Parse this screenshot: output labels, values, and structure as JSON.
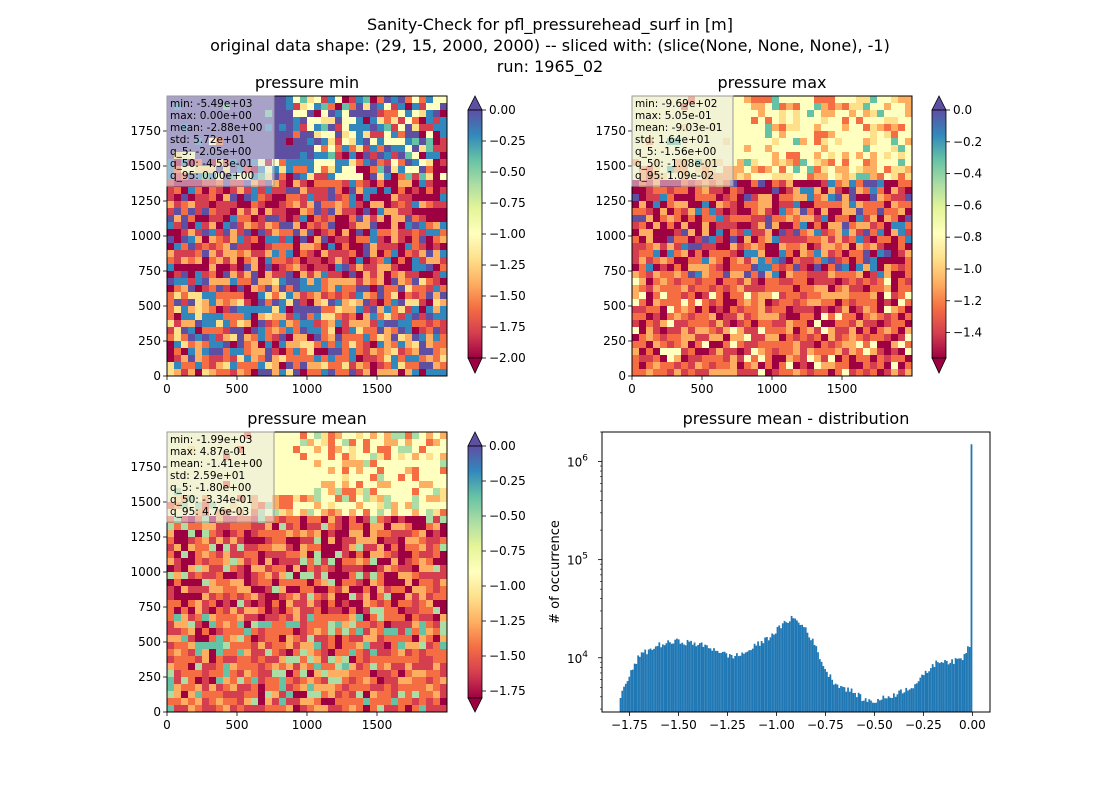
{
  "figure": {
    "suptitle_lines": [
      "Sanity-Check for pfl_pressurehead_surf in [m]",
      "original data shape: (29, 15, 2000, 2000) -- sliced with: (slice(None, None, None), -1)",
      "run: 1965_02"
    ]
  },
  "chart_data": [
    {
      "type": "heatmap",
      "title": "pressure min",
      "xlim": [
        0,
        2000
      ],
      "ylim": [
        0,
        2000
      ],
      "x_ticks": [
        0,
        500,
        1000,
        1500
      ],
      "y_ticks": [
        0,
        250,
        500,
        750,
        1000,
        1250,
        1500,
        1750
      ],
      "colormap": "Spectral",
      "colorbar_range": [
        -2.0,
        0.0
      ],
      "colorbar_ticks": [
        "0.00",
        "−0.25",
        "−0.50",
        "−0.75",
        "−1.00",
        "−1.25",
        "−1.50",
        "−1.75",
        "−2.00"
      ],
      "colorbar_extend": "both",
      "stats": [
        "min: -5.49e+03",
        "max: 0.00e+00",
        "mean: -2.88e+00",
        "std: 5.72e+01",
        "q_5: -2.05e+00",
        "q_50: -4.53e-01",
        "q_95: 0.00e+00"
      ]
    },
    {
      "type": "heatmap",
      "title": "pressure max",
      "xlim": [
        0,
        2000
      ],
      "ylim": [
        0,
        2000
      ],
      "x_ticks": [
        0,
        500,
        1000,
        1500
      ],
      "y_ticks": [
        0,
        250,
        500,
        750,
        1000,
        1250,
        1500,
        1750
      ],
      "colormap": "Spectral",
      "colorbar_range": [
        -1.56,
        0.0
      ],
      "colorbar_ticks": [
        "0.0",
        "−0.2",
        "−0.4",
        "−0.6",
        "−0.8",
        "−1.0",
        "−1.2",
        "−1.4"
      ],
      "colorbar_extend": "both",
      "stats": [
        "min: -9.69e+02",
        "max: 5.05e-01",
        "mean: -9.03e-01",
        "std: 1.64e+01",
        "q_5: -1.56e+00",
        "q_50: -1.08e-01",
        "q_95: 1.09e-02"
      ]
    },
    {
      "type": "heatmap",
      "title": "pressure mean",
      "xlim": [
        0,
        2000
      ],
      "ylim": [
        0,
        2000
      ],
      "x_ticks": [
        0,
        500,
        1000,
        1500
      ],
      "y_ticks": [
        0,
        250,
        500,
        750,
        1000,
        1250,
        1500,
        1750
      ],
      "colormap": "Spectral",
      "colorbar_range": [
        -1.8,
        0.0
      ],
      "colorbar_ticks": [
        "0.00",
        "−0.25",
        "−0.50",
        "−0.75",
        "−1.00",
        "−1.25",
        "−1.50",
        "−1.75"
      ],
      "colorbar_extend": "both",
      "stats": [
        "min: -1.99e+03",
        "max: 4.87e-01",
        "mean: -1.41e+00",
        "std: 2.59e+01",
        "q_5: -1.80e+00",
        "q_50: -3.34e-01",
        "q_95: 4.76e-03"
      ]
    },
    {
      "type": "bar",
      "title": "pressure mean - distribution",
      "ylabel": "# of occurrence",
      "xlabel": "",
      "yscale": "log",
      "xlim": [
        -1.89,
        0.09
      ],
      "ylim": [
        2800,
        2000000
      ],
      "x_ticks": [
        "−1.75",
        "−1.50",
        "−1.25",
        "−1.00",
        "−0.75",
        "−0.50",
        "−0.25",
        "0.00"
      ],
      "x_tick_values": [
        -1.75,
        -1.5,
        -1.25,
        -1.0,
        -0.75,
        -0.5,
        -0.25,
        0.0
      ],
      "y_tick_values": [
        10000,
        100000,
        1000000
      ],
      "y_tick_base": "10",
      "y_tick_exponents": [
        "4",
        "5",
        "6"
      ],
      "bar_color": "#1f77b4",
      "bins": {
        "start": -1.8,
        "end": 0.0,
        "count": 200
      },
      "curve": [
        [
          -1.8,
          3900
        ],
        [
          -1.75,
          6500
        ],
        [
          -1.7,
          10500
        ],
        [
          -1.6,
          13500
        ],
        [
          -1.5,
          14800
        ],
        [
          -1.4,
          13800
        ],
        [
          -1.3,
          12000
        ],
        [
          -1.25,
          10500
        ],
        [
          -1.2,
          10500
        ],
        [
          -1.15,
          11500
        ],
        [
          -1.1,
          13500
        ],
        [
          -1.05,
          15500
        ],
        [
          -1.0,
          19000
        ],
        [
          -0.95,
          23000
        ],
        [
          -0.92,
          26000
        ],
        [
          -0.9,
          24000
        ],
        [
          -0.85,
          20000
        ],
        [
          -0.8,
          13000
        ],
        [
          -0.75,
          7500
        ],
        [
          -0.7,
          5500
        ],
        [
          -0.6,
          4400
        ],
        [
          -0.55,
          3700
        ],
        [
          -0.5,
          3600
        ],
        [
          -0.4,
          4200
        ],
        [
          -0.3,
          5200
        ],
        [
          -0.25,
          6500
        ],
        [
          -0.2,
          8500
        ],
        [
          -0.15,
          9500
        ],
        [
          -0.1,
          9000
        ],
        [
          -0.05,
          10000
        ],
        [
          -0.01,
          14000
        ],
        [
          0.0,
          1500000
        ]
      ]
    }
  ]
}
